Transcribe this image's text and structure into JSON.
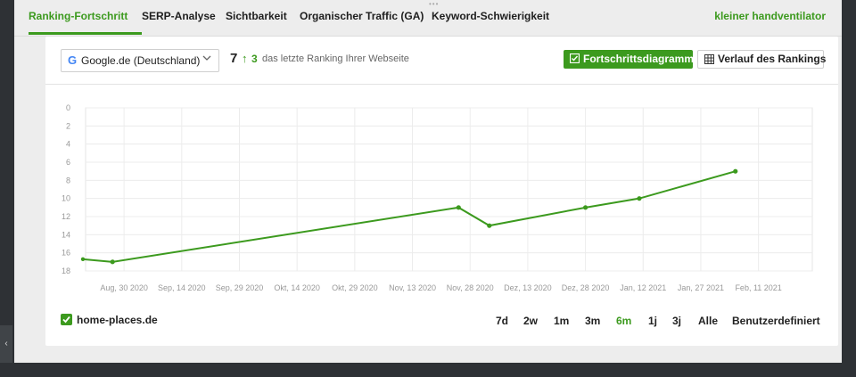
{
  "tabs": [
    {
      "label": "Ranking-Fortschritt",
      "active": true
    },
    {
      "label": "SERP-Analyse",
      "active": false
    },
    {
      "label": "Sichtbarkeit",
      "active": false
    },
    {
      "label": "Organischer Traffic (GA)",
      "active": false
    },
    {
      "label": "Keyword-Schwierigkeit",
      "active": false
    }
  ],
  "keyword": "kleiner handventilator",
  "toolbar": {
    "engine": "Google.de (Deutschland)",
    "rank": "7",
    "rank_change": "3",
    "rank_description": "das letzte Ranking Ihrer Webseite",
    "progress_button": "Fortschrittsdiagramm",
    "history_button": "Verlauf des Rankings"
  },
  "chart_data": {
    "type": "line",
    "y_reversed": true,
    "ylim": [
      0,
      18
    ],
    "y_ticks": [
      0,
      2,
      4,
      6,
      8,
      10,
      12,
      14,
      16,
      18
    ],
    "xlim": [
      "2020-08-20",
      "2021-02-25"
    ],
    "x_ticks": [
      "Aug, 30 2020",
      "Sep, 14 2020",
      "Sep, 29 2020",
      "Okt, 14 2020",
      "Okt, 29 2020",
      "Nov, 13 2020",
      "Nov, 28 2020",
      "Dez, 13 2020",
      "Dez, 28 2020",
      "Jan, 12 2021",
      "Jan, 27 2021",
      "Feb, 11 2021"
    ],
    "grid": true,
    "series": [
      {
        "name": "home-places.de",
        "color": "#3c9a1e",
        "x": [
          "2020-08-27",
          "2020-11-25",
          "2020-12-03",
          "2020-12-28",
          "2021-01-11",
          "2021-02-05"
        ],
        "y": [
          17,
          11,
          13,
          11,
          10,
          7
        ]
      }
    ]
  },
  "legend": {
    "label": "home-places.de",
    "checked": true
  },
  "ranges": [
    {
      "label": "7d",
      "active": false
    },
    {
      "label": "2w",
      "active": false
    },
    {
      "label": "1m",
      "active": false
    },
    {
      "label": "3m",
      "active": false
    },
    {
      "label": "6m",
      "active": true
    },
    {
      "label": "1j",
      "active": false
    },
    {
      "label": "3j",
      "active": false
    },
    {
      "label": "Alle",
      "active": false
    },
    {
      "label": "Benutzerdefiniert",
      "active": false
    }
  ],
  "colors": {
    "accent": "#3c9a1e"
  },
  "icons": {
    "engine": "google-icon",
    "select": "chevron-down-icon",
    "progress": "checkbox-icon",
    "history": "table-icon",
    "side": "chevron-left-icon"
  }
}
